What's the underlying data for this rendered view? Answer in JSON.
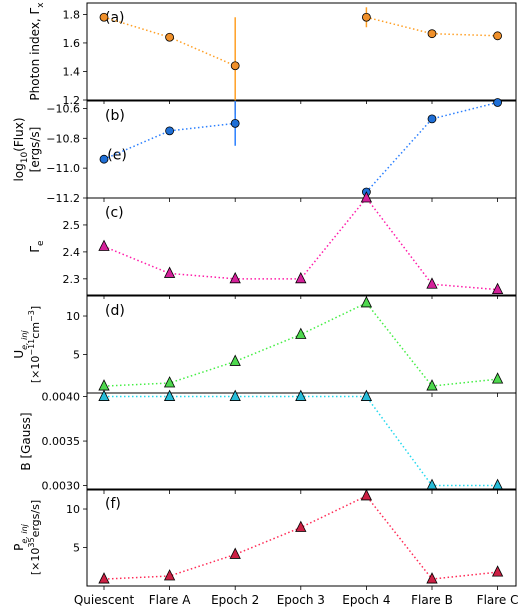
{
  "chart_data": {
    "type": "line",
    "x": {
      "categories": [
        "Quiescent",
        "Flare A",
        "Epoch 2",
        "Epoch 3",
        "Epoch 4",
        "Flare B",
        "Flare C"
      ]
    },
    "panels": [
      {
        "tag": "(a)",
        "ylabel": [
          "Photon index, Γ",
          "x"
        ],
        "ylim": [
          1.2,
          1.88
        ],
        "yticks": [
          {
            "v": 1.2,
            "label": "1.2"
          },
          {
            "v": 1.4,
            "label": "1.4"
          },
          {
            "v": 1.6,
            "label": "1.6"
          },
          {
            "v": 1.8,
            "label": "1.8"
          }
        ],
        "series": [
          {
            "color": "#ff9f24",
            "fill": "#f0902a",
            "marker": "circle",
            "style": "dotted",
            "points": [
              {
                "x": 0,
                "y": 1.78,
                "err": 0.02
              },
              {
                "x": 1,
                "y": 1.64,
                "err": 0.02
              },
              {
                "x": 2,
                "y": 1.44,
                "err": 0.34
              }
            ]
          },
          {
            "color": "#ff9f24",
            "fill": "#f0902a",
            "marker": "circle",
            "style": "dotted",
            "points": [
              {
                "x": 4,
                "y": 1.78,
                "err": 0.07
              },
              {
                "x": 5,
                "y": 1.665,
                "err": 0.01
              },
              {
                "x": 6,
                "y": 1.65,
                "err": 0.01
              }
            ]
          }
        ]
      },
      {
        "tag": "(b)",
        "ylabel": [
          "log10(Flux)",
          "[ergs/s]"
        ],
        "ylim": [
          -11.2,
          -10.55
        ],
        "yticks": [
          {
            "v": -11.2,
            "label": "−11.2"
          },
          {
            "v": -11.0,
            "label": "−11.0"
          },
          {
            "v": -10.8,
            "label": "−10.8"
          },
          {
            "v": -10.6,
            "label": "−10.6"
          }
        ],
        "annotation": {
          "text": "(e)",
          "x": 0.05,
          "y": -10.915
        },
        "series": [
          {
            "color": "#2a7fff",
            "fill": "#1f6fd6",
            "marker": "circle",
            "style": "dotted",
            "points": [
              {
                "x": 0,
                "y": -10.94,
                "err": 0.01
              },
              {
                "x": 1,
                "y": -10.75,
                "err": 0.01
              },
              {
                "x": 2,
                "y": -10.7,
                "err": 0.15
              }
            ]
          },
          {
            "color": "#2a7fff",
            "fill": "#1f6fd6",
            "marker": "circle",
            "style": "dotted",
            "points": [
              {
                "x": 4,
                "y": -11.16,
                "err": 0.01
              },
              {
                "x": 5,
                "y": -10.67,
                "err": 0.01
              },
              {
                "x": 6,
                "y": -10.56,
                "err": 0.01
              }
            ]
          }
        ]
      },
      {
        "tag": "(c)",
        "ylabel": [
          "Γ",
          "e"
        ],
        "ylim": [
          2.24,
          2.6
        ],
        "yticks": [
          {
            "v": 2.3,
            "label": "2.3"
          },
          {
            "v": 2.4,
            "label": "2.4"
          },
          {
            "v": 2.5,
            "label": "2.5"
          }
        ],
        "series": [
          {
            "color": "#ff1aa8",
            "fill": "#d4219a",
            "marker": "triangle",
            "style": "dotted",
            "points": [
              {
                "x": 0,
                "y": 2.42
              },
              {
                "x": 1,
                "y": 2.32
              },
              {
                "x": 2,
                "y": 2.3
              },
              {
                "x": 3,
                "y": 2.3
              },
              {
                "x": 4,
                "y": 2.6
              },
              {
                "x": 5,
                "y": 2.28
              },
              {
                "x": 6,
                "y": 2.26
              }
            ]
          }
        ]
      },
      {
        "tag": "(d)",
        "ylabel": [
          "U",
          "e, inj",
          "[×10",
          "−11",
          "cm",
          "−3",
          "]"
        ],
        "ylim": [
          0,
          12.6
        ],
        "yticks": [
          {
            "v": 5,
            "label": "5"
          },
          {
            "v": 10,
            "label": "10"
          }
        ],
        "series": [
          {
            "color": "#44ee44",
            "fill": "#4ed84e",
            "marker": "triangle",
            "style": "dotted",
            "points": [
              {
                "x": 0,
                "y": 0.9
              },
              {
                "x": 1,
                "y": 1.3
              },
              {
                "x": 2,
                "y": 4.1
              },
              {
                "x": 3,
                "y": 7.6
              },
              {
                "x": 4,
                "y": 11.7
              },
              {
                "x": 5,
                "y": 0.9
              },
              {
                "x": 6,
                "y": 1.8
              }
            ]
          }
        ]
      },
      {
        "tag": "",
        "ylabel": [
          "B [Gauss]"
        ],
        "ylim": [
          0.00295,
          0.00404
        ],
        "yticks": [
          {
            "v": 0.003,
            "label": "0.0030"
          },
          {
            "v": 0.0035,
            "label": "0.0035"
          },
          {
            "v": 0.004,
            "label": "0.0040"
          }
        ],
        "series": [
          {
            "color": "#22d8ee",
            "fill": "#27bcd8",
            "marker": "triangle",
            "style": "dotted",
            "points": [
              {
                "x": 0,
                "y": 0.004
              },
              {
                "x": 1,
                "y": 0.004
              },
              {
                "x": 2,
                "y": 0.004
              },
              {
                "x": 3,
                "y": 0.004
              },
              {
                "x": 4,
                "y": 0.004
              },
              {
                "x": 5,
                "y": 0.003
              },
              {
                "x": 6,
                "y": 0.003
              }
            ]
          }
        ]
      },
      {
        "tag": "(f)",
        "ylabel": [
          "P",
          "e, inj",
          "[×10",
          "35",
          "ergs/s]"
        ],
        "ylim": [
          0,
          12.6
        ],
        "yticks": [
          {
            "v": 5,
            "label": "5"
          },
          {
            "v": 10,
            "label": "10"
          }
        ],
        "series": [
          {
            "color": "#ff2a55",
            "fill": "#cc2044",
            "marker": "triangle",
            "style": "dotted",
            "points": [
              {
                "x": 0,
                "y": 0.9
              },
              {
                "x": 1,
                "y": 1.3
              },
              {
                "x": 2,
                "y": 4.1
              },
              {
                "x": 3,
                "y": 7.6
              },
              {
                "x": 4,
                "y": 11.7
              },
              {
                "x": 5,
                "y": 0.9
              },
              {
                "x": 6,
                "y": 1.8
              }
            ]
          }
        ]
      }
    ]
  }
}
